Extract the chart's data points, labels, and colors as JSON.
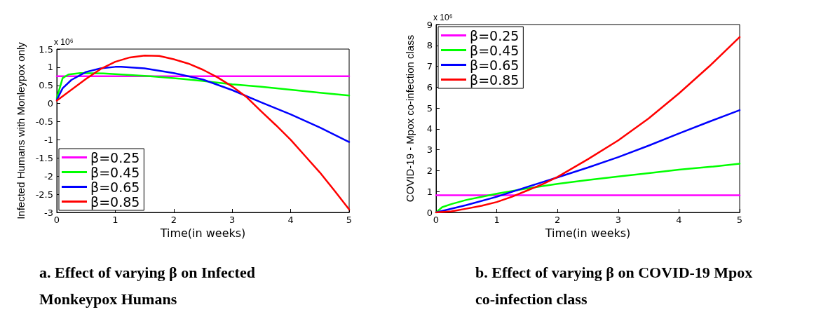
{
  "chart_data": [
    {
      "type": "line",
      "title": "a.  Effect of varying β on Infected Monkeypox Humans",
      "xlabel": "Time(in weeks)",
      "ylabel": "Infected Humans with Monleypox only",
      "annotations": [
        "x 10⁶"
      ],
      "xlim": [
        0,
        5
      ],
      "xticks": [
        0,
        1,
        2,
        3,
        4,
        5
      ],
      "ylim": [
        -3,
        1.5
      ],
      "yticks": [
        -3,
        -2.5,
        -2,
        -1.5,
        -1,
        -0.5,
        0,
        0.5,
        1,
        1.5
      ],
      "grid": false,
      "legend": "bottom left",
      "marker": "none",
      "line_style": "solid",
      "series": [
        {
          "name": "β=0.25",
          "color": "#ff00ff",
          "x": [
            0,
            5
          ],
          "values": [
            0.75,
            0.75
          ]
        },
        {
          "name": "β=0.45",
          "color": "#00ff00",
          "x": [
            0,
            0.1,
            0.2,
            0.4,
            0.8,
            1.2,
            1.6,
            2,
            2.5,
            3,
            3.5,
            4,
            4.5,
            5
          ],
          "values": [
            0.15,
            0.7,
            0.8,
            0.84,
            0.83,
            0.79,
            0.75,
            0.7,
            0.62,
            0.53,
            0.46,
            0.38,
            0.3,
            0.22
          ]
        },
        {
          "name": "β=0.65",
          "color": "#0000ff",
          "x": [
            0,
            0.1,
            0.25,
            0.5,
            0.75,
            1,
            1.1,
            1.5,
            2,
            2.5,
            3,
            3.5,
            4,
            4.5,
            5
          ],
          "values": [
            0.1,
            0.42,
            0.65,
            0.87,
            0.97,
            1.01,
            1.01,
            0.97,
            0.84,
            0.66,
            0.37,
            0.03,
            -0.3,
            -0.66,
            -1.06
          ]
        },
        {
          "name": "β=0.85",
          "color": "#ff0000",
          "x": [
            0,
            0.25,
            0.5,
            0.75,
            1,
            1.25,
            1.5,
            1.75,
            2,
            2.25,
            2.5,
            2.75,
            3,
            3.25,
            3.5,
            3.75,
            4,
            4.25,
            4.5,
            4.75,
            5
          ],
          "values": [
            0.08,
            0.38,
            0.68,
            0.95,
            1.15,
            1.27,
            1.32,
            1.31,
            1.22,
            1.1,
            0.93,
            0.72,
            0.47,
            0.17,
            -0.22,
            -0.6,
            -1.0,
            -1.45,
            -1.9,
            -2.4,
            -2.92
          ]
        }
      ]
    },
    {
      "type": "line",
      "title": "b. Effect of varying β  on COVID-19 Mpox co-infection class",
      "xlabel": "Time(in weeks)",
      "ylabel": "COVID-19 - Mpox co-infection class",
      "annotations": [
        "x 10⁶"
      ],
      "xlim": [
        0,
        5
      ],
      "xticks": [
        0,
        1,
        2,
        3,
        4,
        5
      ],
      "ylim": [
        0,
        9
      ],
      "yticks": [
        0,
        1,
        2,
        3,
        4,
        5,
        6,
        7,
        8,
        9
      ],
      "grid": false,
      "legend": "top left",
      "marker": "none",
      "line_style": "solid",
      "series": [
        {
          "name": "β=0.25",
          "color": "#ff00ff",
          "x": [
            0,
            5
          ],
          "values": [
            0.82,
            0.82
          ]
        },
        {
          "name": "β=0.45",
          "color": "#00ff00",
          "x": [
            0,
            0.1,
            0.25,
            0.5,
            0.75,
            1,
            1.5,
            2,
            2.5,
            3,
            3.5,
            4,
            4.5,
            5
          ],
          "values": [
            0,
            0.25,
            0.4,
            0.6,
            0.75,
            0.9,
            1.15,
            1.37,
            1.55,
            1.72,
            1.88,
            2.05,
            2.18,
            2.33
          ]
        },
        {
          "name": "β=0.65",
          "color": "#0000ff",
          "x": [
            0,
            0.5,
            1,
            1.5,
            2,
            2.5,
            3,
            3.5,
            4,
            4.5,
            5
          ],
          "values": [
            0,
            0.35,
            0.75,
            1.22,
            1.68,
            2.15,
            2.65,
            3.2,
            3.78,
            4.35,
            4.9
          ]
        },
        {
          "name": "β=0.85",
          "color": "#ff0000",
          "x": [
            0,
            0.25,
            0.5,
            0.75,
            1,
            1.25,
            1.5,
            1.75,
            2,
            2.5,
            3,
            3.5,
            4,
            4.5,
            5
          ],
          "values": [
            0,
            0.05,
            0.18,
            0.32,
            0.5,
            0.75,
            1.05,
            1.35,
            1.7,
            2.55,
            3.45,
            4.5,
            5.7,
            7.0,
            8.4
          ]
        }
      ]
    }
  ]
}
